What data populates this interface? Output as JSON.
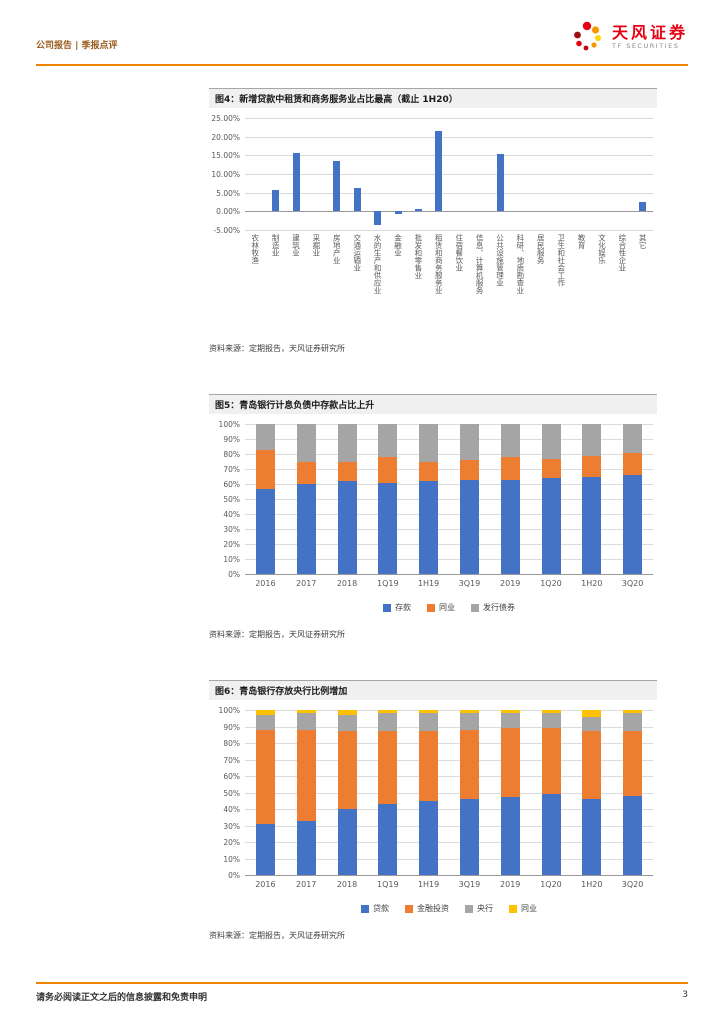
{
  "header": {
    "category": "公司报告 | 季报点评",
    "brand": "天风证券",
    "brand_sub": "TF SECURITIES"
  },
  "theme": {
    "accent_orange": "#F08300",
    "brand_red": "#E60012",
    "bar_blue": "#4472C4",
    "bar_orange": "#ED7D31",
    "bar_gray": "#A5A5A5",
    "bar_yellow": "#FFC000"
  },
  "chart_data": [
    {
      "type": "bar",
      "title": "图4：新增贷款中租赁和商务服务业占比最高（截止 1H20）",
      "source": "资料来源：定期报告，天风证券研究所",
      "categories": [
        "农林牧渔",
        "制造业",
        "建筑业",
        "采掘业",
        "房地产业",
        "交通运输业",
        "水的生产和供应业",
        "金融业",
        "批发和零售业",
        "租赁和商务服务业",
        "住宿餐饮业",
        "信息、计算机服务",
        "公共设施管理业",
        "科研、地质勘查业",
        "居民服务",
        "卫生和社会工作",
        "教育",
        "文化娱乐",
        "综合性企业",
        "其它"
      ],
      "series": [
        {
          "name": "新增贷款占比",
          "color": "#4472C4",
          "values": [
            0,
            5.6,
            15.7,
            0,
            13.4,
            6.3,
            -3.7,
            -0.8,
            0.6,
            21.5,
            0,
            0,
            15.3,
            0,
            0,
            0,
            0,
            0,
            0,
            2.6
          ]
        }
      ],
      "ymin": -5,
      "ymax": 25,
      "ylim": [
        -5,
        25
      ],
      "yticks": [
        {
          "v": 25,
          "label": "25.00%"
        },
        {
          "v": 20,
          "label": "20.00%"
        },
        {
          "v": 15,
          "label": "15.00%"
        },
        {
          "v": 10,
          "label": "10.00%"
        },
        {
          "v": 5,
          "label": "5.00%"
        },
        {
          "v": 0,
          "label": "0.00%"
        },
        {
          "v": -5,
          "label": "-5.00%"
        }
      ],
      "stacked": false,
      "legend": false
    },
    {
      "type": "stacked-bar",
      "title": "图5：青岛银行计息负债中存款占比上升",
      "source": "资料来源：定期报告，天风证券研究所",
      "categories": [
        "2016",
        "2017",
        "2018",
        "1Q19",
        "1H19",
        "3Q19",
        "2019",
        "1Q20",
        "1H20",
        "3Q20"
      ],
      "series": [
        {
          "name": "存款",
          "color": "#4472C4",
          "values": [
            57,
            60,
            62,
            61,
            62,
            63,
            63,
            64,
            65,
            66
          ]
        },
        {
          "name": "同业",
          "color": "#ED7D31",
          "values": [
            26,
            15,
            13,
            17,
            13,
            13,
            15,
            13,
            14,
            15
          ]
        },
        {
          "name": "发行债券",
          "color": "#A5A5A5",
          "values": [
            17,
            25,
            25,
            22,
            25,
            24,
            22,
            23,
            21,
            19
          ]
        }
      ],
      "ymin": 0,
      "ymax": 100,
      "ylim": [
        0,
        100
      ],
      "yticks": [
        {
          "v": 100,
          "label": "100%"
        },
        {
          "v": 90,
          "label": "90%"
        },
        {
          "v": 80,
          "label": "80%"
        },
        {
          "v": 70,
          "label": "70%"
        },
        {
          "v": 60,
          "label": "60%"
        },
        {
          "v": 50,
          "label": "50%"
        },
        {
          "v": 40,
          "label": "40%"
        },
        {
          "v": 30,
          "label": "30%"
        },
        {
          "v": 20,
          "label": "20%"
        },
        {
          "v": 10,
          "label": "10%"
        },
        {
          "v": 0,
          "label": "0%"
        }
      ],
      "stacked": true,
      "legend": true
    },
    {
      "type": "stacked-bar",
      "title": "图6：青岛银行存放央行比例增加",
      "source": "资料来源：定期报告，天风证券研究所",
      "categories": [
        "2016",
        "2017",
        "2018",
        "1Q19",
        "1H19",
        "3Q19",
        "2019",
        "1Q20",
        "1H20",
        "3Q20"
      ],
      "series": [
        {
          "name": "贷款",
          "color": "#4472C4",
          "values": [
            31,
            33,
            40,
            43,
            45,
            46,
            47,
            49,
            46,
            48
          ]
        },
        {
          "name": "金融投资",
          "color": "#ED7D31",
          "values": [
            57,
            55,
            47,
            44,
            42,
            42,
            42,
            40,
            41,
            39
          ]
        },
        {
          "name": "央行",
          "color": "#A5A5A5",
          "values": [
            9,
            10,
            10,
            11,
            11,
            10,
            9,
            9,
            9,
            11
          ]
        },
        {
          "name": "同业",
          "color": "#FFC000",
          "values": [
            3,
            2,
            3,
            2,
            2,
            2,
            2,
            2,
            4,
            2
          ]
        }
      ],
      "ymin": 0,
      "ymax": 100,
      "ylim": [
        0,
        100
      ],
      "yticks": [
        {
          "v": 100,
          "label": "100%"
        },
        {
          "v": 90,
          "label": "90%"
        },
        {
          "v": 80,
          "label": "80%"
        },
        {
          "v": 70,
          "label": "70%"
        },
        {
          "v": 60,
          "label": "60%"
        },
        {
          "v": 50,
          "label": "50%"
        },
        {
          "v": 40,
          "label": "40%"
        },
        {
          "v": 30,
          "label": "30%"
        },
        {
          "v": 20,
          "label": "20%"
        },
        {
          "v": 10,
          "label": "10%"
        },
        {
          "v": 0,
          "label": "0%"
        }
      ],
      "stacked": true,
      "legend": true
    }
  ],
  "footer": {
    "disclaimer": "请务必阅读正文之后的信息披露和免责申明",
    "page_number": "3"
  }
}
